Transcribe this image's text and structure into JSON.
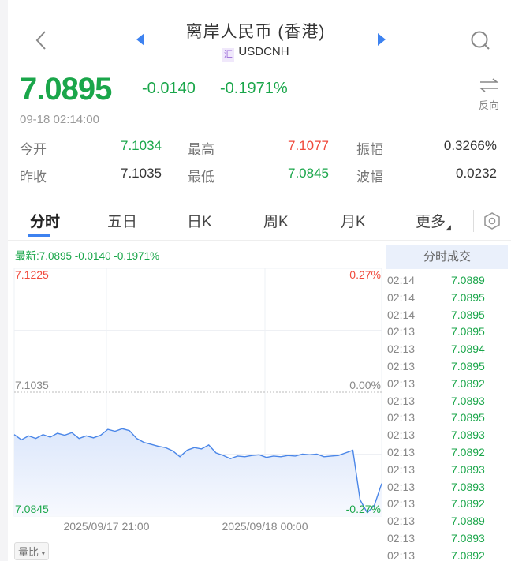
{
  "header": {
    "title": "离岸人民币 (香港)",
    "badge": "汇",
    "symbol": "USDCNH"
  },
  "quote": {
    "price": "7.0895",
    "change": "-0.0140",
    "change_pct": "-0.1971%",
    "time": "09-18 02:14:00",
    "reverse_label": "反向"
  },
  "stats": [
    [
      {
        "label": "今开",
        "value": "7.1034",
        "color": "#1aa64a"
      },
      {
        "label": "最高",
        "value": "7.1077",
        "color": "#f04a3c"
      },
      {
        "label": "振幅",
        "value": "0.3266%",
        "color": "#333333"
      }
    ],
    [
      {
        "label": "昨收",
        "value": "7.1035",
        "color": "#333333"
      },
      {
        "label": "最低",
        "value": "7.0845",
        "color": "#1aa64a"
      },
      {
        "label": "波幅",
        "value": "0.0232",
        "color": "#333333"
      }
    ]
  ],
  "tabs": [
    {
      "label": "分时",
      "active": true
    },
    {
      "label": "五日"
    },
    {
      "label": "日K"
    },
    {
      "label": "周K"
    },
    {
      "label": "月K"
    },
    {
      "label": "更多"
    }
  ],
  "chart": {
    "latest": "最新:7.0895  -0.0140  -0.1971%",
    "y_top": "7.1225",
    "y_mid": "7.1035",
    "y_bot": "7.0845",
    "pct_top": "0.27%",
    "pct_mid": "0.00%",
    "pct_bot": "-0.27%",
    "x_labels": [
      "2025/09/17 21:00",
      "2025/09/18 00:00"
    ],
    "volume_button": "量比"
  },
  "chart_data": {
    "type": "line",
    "ylim": [
      7.0845,
      7.1225
    ],
    "baseline": 7.1035,
    "x_ticks": [
      "2025/09/17 21:00",
      "2025/09/18 00:00"
    ],
    "values": [
      7.097,
      7.0962,
      7.0968,
      7.0964,
      7.097,
      7.0966,
      7.0972,
      7.0969,
      7.0973,
      7.0964,
      7.0968,
      7.0965,
      7.0969,
      7.0978,
      7.0975,
      7.0979,
      7.0976,
      7.0964,
      7.0958,
      7.0955,
      7.0952,
      7.095,
      7.0945,
      7.0936,
      7.0946,
      7.095,
      7.0948,
      7.0954,
      7.0942,
      7.0938,
      7.0933,
      7.0937,
      7.0936,
      7.0938,
      7.0939,
      7.0935,
      7.0937,
      7.0936,
      7.0938,
      7.0937,
      7.094,
      7.0939,
      7.094,
      7.0936,
      7.0937,
      7.0938,
      7.0942,
      7.0946,
      7.087,
      7.085,
      7.0862,
      7.0895
    ],
    "line_color": "#4a86e8"
  },
  "trades": {
    "title": "分时成交",
    "rows": [
      [
        "02:14",
        "7.0889"
      ],
      [
        "02:14",
        "7.0895"
      ],
      [
        "02:14",
        "7.0895"
      ],
      [
        "02:13",
        "7.0895"
      ],
      [
        "02:13",
        "7.0894"
      ],
      [
        "02:13",
        "7.0895"
      ],
      [
        "02:13",
        "7.0892"
      ],
      [
        "02:13",
        "7.0893"
      ],
      [
        "02:13",
        "7.0895"
      ],
      [
        "02:13",
        "7.0893"
      ],
      [
        "02:13",
        "7.0892"
      ],
      [
        "02:13",
        "7.0893"
      ],
      [
        "02:13",
        "7.0893"
      ],
      [
        "02:13",
        "7.0892"
      ],
      [
        "02:13",
        "7.0889"
      ],
      [
        "02:13",
        "7.0893"
      ],
      [
        "02:13",
        "7.0892"
      ]
    ]
  }
}
